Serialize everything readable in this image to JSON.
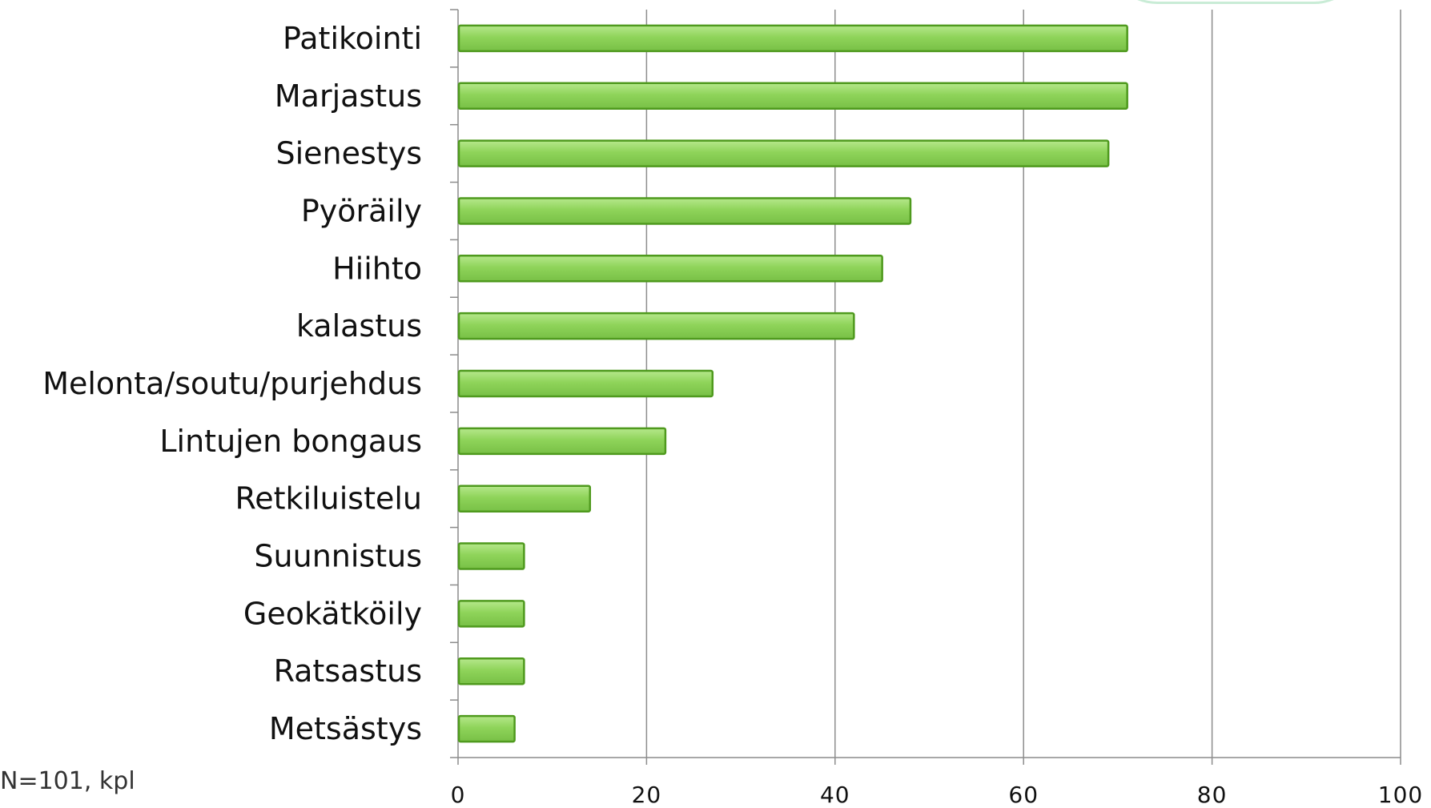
{
  "chart_data": {
    "type": "bar",
    "orientation": "horizontal",
    "categories": [
      "Patikointi",
      "Marjastus",
      "Sienestys",
      "Pyöräily",
      "Hiihto",
      "kalastus",
      "Melonta/soutu/purjehdus",
      "Lintujen bongaus",
      "Retkiluistelu",
      "Suunnistus",
      "Geokätköily",
      "Ratsastus",
      "Metsästys"
    ],
    "values": [
      71,
      71,
      69,
      48,
      45,
      42,
      27,
      22,
      14,
      7,
      7,
      7,
      6
    ],
    "xlim": [
      0,
      100
    ],
    "xticks": [
      0,
      20,
      40,
      60,
      80,
      100
    ],
    "tick_labels": [
      "0",
      "20",
      "40",
      "60",
      "80",
      "100"
    ],
    "grid": true,
    "legend": "none",
    "bar_color": "#8fd45a",
    "bar_border_color": "#4f9a1e",
    "note": "N=101, kpl"
  }
}
